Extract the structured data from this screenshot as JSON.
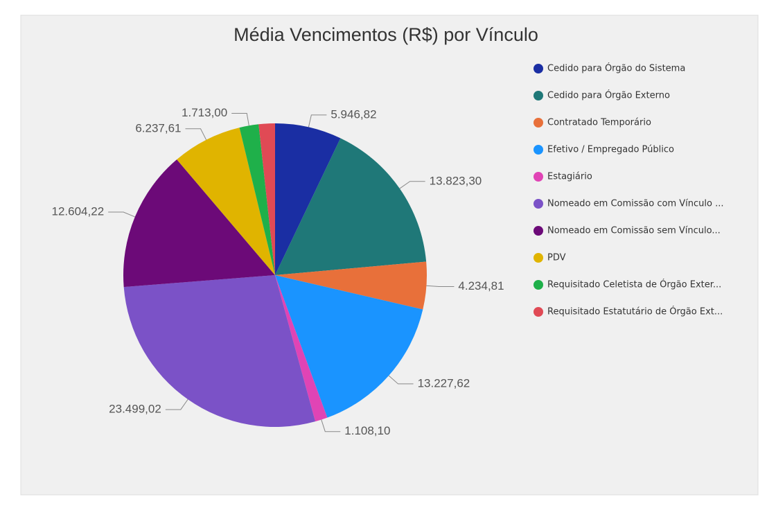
{
  "chart_data": {
    "type": "pie",
    "title": "Média Vencimentos (R$) por Vínculo",
    "categories": [
      "Cedido para Órgão do Sistema",
      "Cedido para Órgão Externo",
      "Contratado Temporário",
      "Efetivo / Empregado Público",
      "Estagiário",
      "Nomeado em Comissão com Vínculo ...",
      "Nomeado em Comissão sem Vínculo...",
      "PDV",
      "Requisitado Celetista de Órgão Exter...",
      "Requisitado Estatutário de Órgão Ext..."
    ],
    "values": [
      5946.82,
      13823.3,
      4234.81,
      13227.62,
      1108.1,
      23499.02,
      12604.22,
      6237.61,
      1713.0,
      1450
    ],
    "value_labels": [
      "5.946,82",
      "13.823,30",
      "4.234,81",
      "13.227,62",
      "1.108,10",
      "23.499,02",
      "12.604,22",
      "6.237,61",
      "1.713,00",
      null
    ],
    "colors": [
      "#1a2ea3",
      "#1f7878",
      "#e8703a",
      "#1a94ff",
      "#e044b5",
      "#7b52c7",
      "#6c0a78",
      "#e0b400",
      "#1fb04a",
      "#e04a55"
    ],
    "legend": "right"
  }
}
